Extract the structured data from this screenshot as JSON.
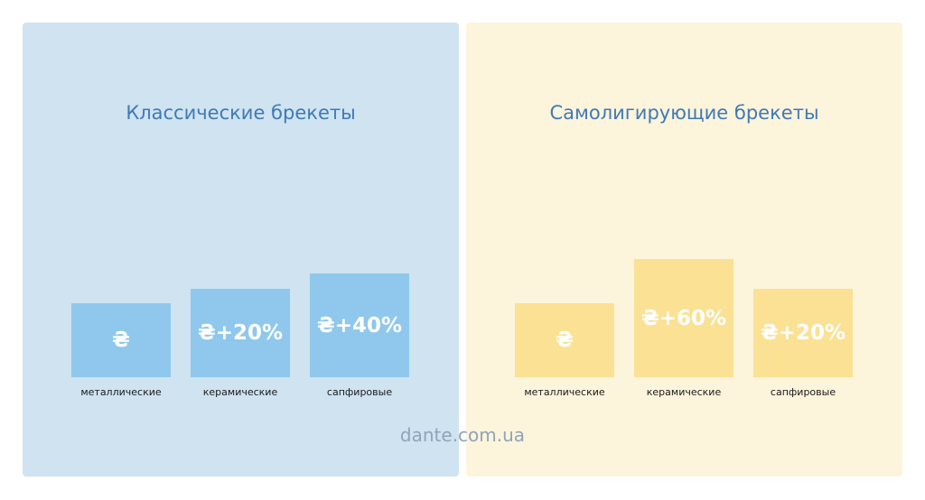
{
  "watermark": "dante.com.ua",
  "colors": {
    "panel_left_bg": "#cfe3f1",
    "panel_right_bg": "#fdf4dc",
    "bar_left": "#8fc8ec",
    "bar_right": "#fbe193",
    "title": "#3f7ab5"
  },
  "chart_data": [
    {
      "type": "bar",
      "title": "Классические брекеты",
      "categories": [
        "металлические",
        "керамические",
        "сапфировые"
      ],
      "values": [
        100,
        120,
        140
      ],
      "labels": [
        "₴",
        "₴+20%",
        "₴+40%"
      ],
      "ylim": [
        0,
        200
      ],
      "grid": false
    },
    {
      "type": "bar",
      "title": "Самолигирующие брекеты",
      "categories": [
        "металлические",
        "керамические",
        "сапфировые"
      ],
      "values": [
        100,
        160,
        120
      ],
      "labels": [
        "₴",
        "₴+60%",
        "₴+20%"
      ],
      "ylim": [
        0,
        200
      ],
      "grid": false
    }
  ]
}
